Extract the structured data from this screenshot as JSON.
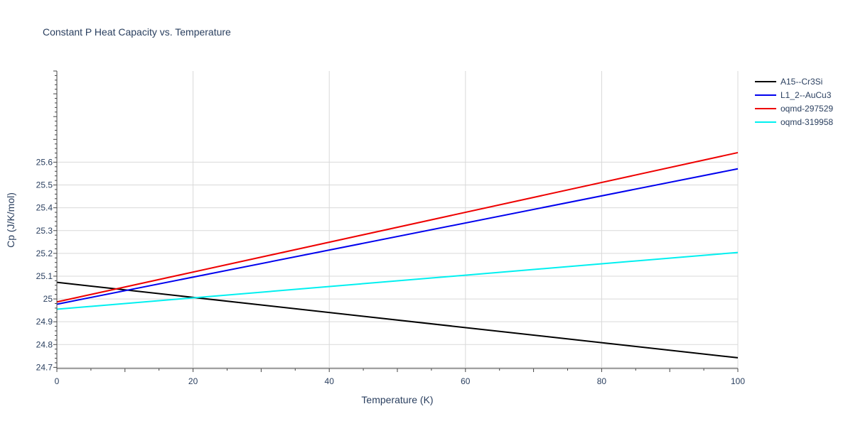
{
  "chart_data": {
    "type": "line",
    "title": "Constant P Heat Capacity vs. Temperature",
    "xlabel": "Temperature (K)",
    "ylabel": "Cp (J/K/mol)",
    "xlim": [
      0,
      100
    ],
    "ylim": [
      24.695,
      26.0
    ],
    "x_ticks": [
      0,
      20,
      40,
      60,
      80,
      100
    ],
    "y_ticks": [
      24.7,
      24.8,
      24.9,
      25,
      25.1,
      25.2,
      25.3,
      25.4,
      25.5,
      25.6
    ],
    "x_tick_labels": [
      "0",
      "20",
      "40",
      "60",
      "80",
      "100"
    ],
    "y_tick_labels": [
      "24.7",
      "24.8",
      "24.9",
      "25",
      "25.1",
      "25.2",
      "25.3",
      "25.4",
      "25.5",
      "25.6"
    ],
    "grid": true,
    "legend_position": "top-right",
    "series": [
      {
        "name": "A15--Cr3Si",
        "color": "#000000",
        "x": [
          0,
          100
        ],
        "y": [
          25.073,
          24.742
        ]
      },
      {
        "name": "L1_2--AuCu3",
        "color": "#0000ee",
        "x": [
          0,
          100
        ],
        "y": [
          24.977,
          25.571
        ]
      },
      {
        "name": "oqmd-297529",
        "color": "#ee0000",
        "x": [
          0,
          100
        ],
        "y": [
          24.987,
          25.642
        ]
      },
      {
        "name": "oqmd-319958",
        "color": "#00f0f0",
        "x": [
          0,
          100
        ],
        "y": [
          24.955,
          25.204
        ]
      }
    ]
  }
}
